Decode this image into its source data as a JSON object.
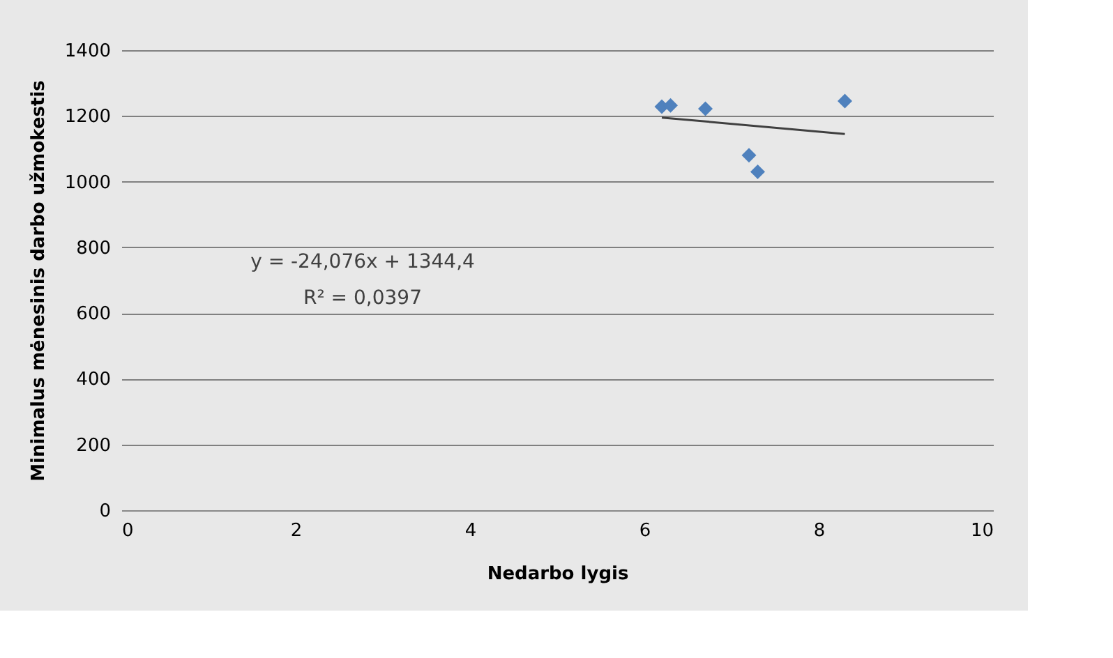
{
  "chart_data": {
    "type": "scatter",
    "xlabel": "Nedarbo lygis",
    "ylabel": "Minimalus mėnesinis darbo užmokestis",
    "xlim": [
      0,
      10
    ],
    "xticks": [
      0,
      2,
      4,
      6,
      8,
      10
    ],
    "ylim": [
      0,
      1400
    ],
    "yticks": [
      0,
      200,
      400,
      600,
      800,
      1000,
      1200,
      1400
    ],
    "grid": "y",
    "series": [
      {
        "color": "#4f81bd",
        "marker": "diamond",
        "x": [
          6.2,
          6.3,
          6.7,
          7.2,
          7.3,
          8.3
        ],
        "values": [
          1228,
          1232,
          1222,
          1080,
          1030,
          1245
        ]
      },
      {
        "type": "line",
        "marker": "none",
        "color": "#404040",
        "x": [
          6.2,
          8.3
        ],
        "values": [
          1195,
          1145
        ]
      }
    ],
    "annotations": [
      "y = -24,076x + 1344,4",
      "R² = 0,0397"
    ]
  }
}
